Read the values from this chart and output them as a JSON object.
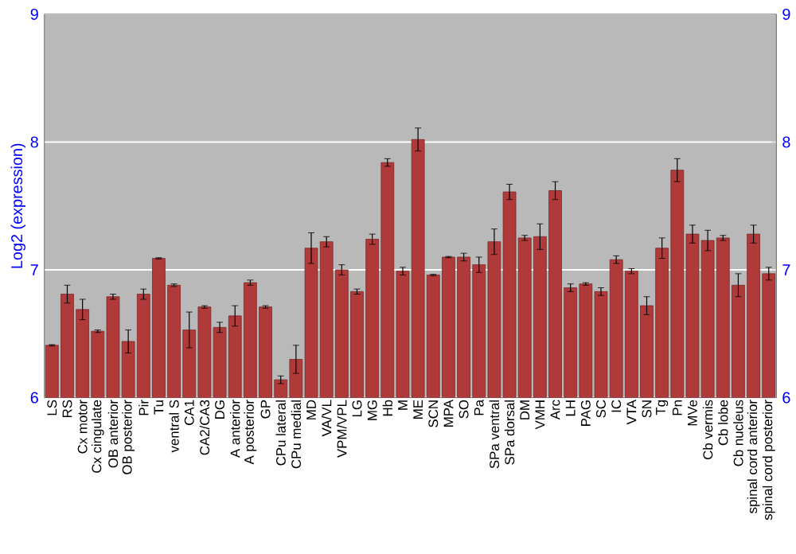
{
  "chart_data": {
    "type": "bar",
    "ylabel": "Log2 (expression)",
    "categories": [
      "LS",
      "RS",
      "Cx motor",
      "Cx cingulate",
      "OB anterior",
      "OB posterior",
      "Pir",
      "Tu",
      "ventral S",
      "CA1",
      "CA2/CA3",
      "DG",
      "A anterior",
      "A posterior",
      "GP",
      "CPu lateral",
      "CPu medial",
      "MD",
      "VA/VL",
      "VPM/VPL",
      "LG",
      "MG",
      "Hb",
      "M",
      "ME",
      "SCN",
      "MPA",
      "SO",
      "Pa",
      "SPa ventral",
      "SPa dorsal",
      "DM",
      "VMH",
      "Arc",
      "LH",
      "PAG",
      "SC",
      "IC",
      "VTA",
      "SN",
      "Tg",
      "Pn",
      "MVe",
      "Cb vermis",
      "Cb lobe",
      "Cb nucleus",
      "spinal cord anterior",
      "spinal cord posterior"
    ],
    "values": [
      6.41,
      6.81,
      6.69,
      6.52,
      6.79,
      6.44,
      6.81,
      7.09,
      6.88,
      6.53,
      6.71,
      6.55,
      6.64,
      6.9,
      6.71,
      6.14,
      6.3,
      7.17,
      7.22,
      7.0,
      6.83,
      7.24,
      7.84,
      6.99,
      8.02,
      6.96,
      7.1,
      7.1,
      7.04,
      7.22,
      7.61,
      7.25,
      7.26,
      7.62,
      6.86,
      6.89,
      6.83,
      7.08,
      6.99,
      6.72,
      7.17,
      7.78,
      7.28,
      7.23,
      7.25,
      6.88,
      7.28,
      6.97
    ],
    "errors": [
      0.005,
      0.07,
      0.08,
      0.01,
      0.02,
      0.09,
      0.04,
      0.005,
      0.01,
      0.14,
      0.01,
      0.04,
      0.08,
      0.02,
      0.01,
      0.03,
      0.11,
      0.12,
      0.04,
      0.04,
      0.02,
      0.04,
      0.03,
      0.03,
      0.09,
      0.005,
      0.005,
      0.03,
      0.06,
      0.1,
      0.06,
      0.02,
      0.1,
      0.07,
      0.03,
      0.01,
      0.03,
      0.03,
      0.02,
      0.07,
      0.08,
      0.09,
      0.07,
      0.08,
      0.02,
      0.09,
      0.07,
      0.05
    ],
    "color": "#b03a3a",
    "ylim": [
      6,
      9
    ],
    "yticks": [
      6,
      7,
      8,
      9
    ],
    "y2lim": [
      6,
      9
    ],
    "y2ticks": [
      6,
      7,
      8,
      9
    ],
    "grid": "y"
  }
}
